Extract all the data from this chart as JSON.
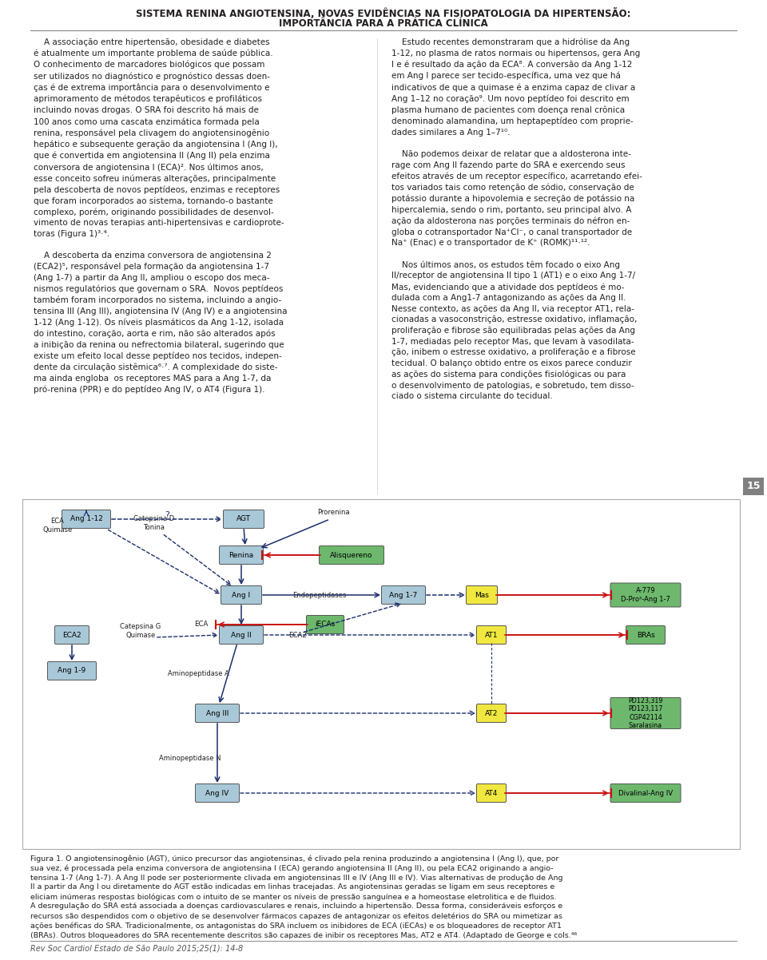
{
  "title_line1": "SISTEMA RENINA ANGIOTENSINA, NOVAS EVIDÊNCIAS NA FISIOPATOLOGIA DA HIPERTENSÃO:",
  "title_line2": "IMPORTÂNCIA PARA A PRÁTICA CLÍNICA",
  "background_color": "#ffffff",
  "text_color": "#231f20",
  "page_number": "15",
  "footer": "Rev Soc Cardiol Estado de São Paulo 2015;25(1): 14-8",
  "col1_text": "    A associação entre hipertensão, obesidade e diabetes\né atualmente um importante problema de saúde pública.\nO conhecimento de marcadores biológicos que possam\nser utilizados no diagnóstico e prognóstico dessas doen-\nças é de extrema importância para o desenvolvimento e\naprimoramento de métodos terapêuticos e profiláticos\nincluindo novas drogas. O SRA foi descrito há mais de\n100 anos como uma cascata enzimática formada pela\nrenina, responsável pela clivagem do angiotensinogênio\nhepático e subsequente geração da angiotensina I (Ang I),\nque é convertida em angiotensina II (Ang II) pela enzima\nconversora de angiotensina I (ECA)². Nos últimos anos,\nesse conceito sofreu inúmeras alterações, principalmente\npela descoberta de novos peptídeos, enzimas e receptores\nque foram incorporados ao sistema, tornando-o bastante\ncomplexo, porém, originando possibilidades de desenvol-\nvimento de novas terapias anti-hipertensivas e cardioprote-\ntoras (Figura 1)³·⁴.\n\n    A descoberta da enzima conversora de angiotensina 2\n(ECA2)⁵, responsável pela formação da angiotensina 1-7\n(Ang 1-7) a partir da Ang II, ampliou o escopo dos meca-\nnismos regulatórios que governam o SRA.  Novos peptídeos\ntambém foram incorporados no sistema, incluindo a angio-\ntensina III (Ang III), angiotensina IV (Ang IV) e a angiotensina\n1-12 (Ang 1-12). Os níveis plasmáticos da Ang 1-12, isolada\ndo intestino, coração, aorta e rim, não são alterados após\na inibição da renina ou nefrectomia bilateral, sugerindo que\nexiste um efeito local desse peptídeo nos tecidos, indepen-\ndente da circulação sistêmica⁶·⁷. A complexidade do siste-\nma ainda engloba  os receptores MAS para a Ang 1-7, da\npró-renina (PPR) e do peptídeo Ang IV, o AT4 (Figura 1).",
  "col2_text": "    Estudo recentes demonstraram que a hidrólise da Ang\n1-12, no plasma de ratos normais ou hipertensos, gera Ang\nI e é resultado da ação da ECA⁸. A conversão da Ang 1-12\nem Ang I parece ser tecido-específica, uma vez que há\nindicativos de que a quimase é a enzima capaz de clivar a\nAng 1–12 no coração⁹. Um novo peptídeo foi descrito em\nplasma humano de pacientes com doença renal crônica\ndenominado alamandina, um heptapeptídeo com proprie-\ndades similares a Ang 1–7¹⁰.\n\n    Não podemos deixar de relatar que a aldosterona inte-\nrage com Ang II fazendo parte do SRA e exercendo seus\nefeitos através de um receptor específico, acarretando efei-\ntos variados tais como retenção de sódio, conservação de\npotássio durante a hipovolemia e secreção de potássio na\nhipercalemia, sendo o rim, portanto, seu principal alvo. A\nação da aldosterona nas porções terminais do néfron en-\ngloba o cotransportador Na⁺Cl⁻, o canal transportador de\nNa⁺ (Enac) e o transportador de K⁺ (ROMK)¹¹·¹².\n\n    Nos últimos anos, os estudos têm focado o eixo Ang\nII/receptor de angiotensina II tipo 1 (AT1) e o eixo Ang 1-7/\nMas, evidenciando que a atividade dos peptídeos é mo-\ndulada com a Ang1-7 antagonizando as ações da Ang II.\nNesse contexto, as ações da Ang II, via receptor AT1, rela-\ncionadas a vasoconstrição, estresse oxidativo, inflamação,\nproliferação e fibrose são equilibradas pelas ações da Ang\n1-7, mediadas pelo receptor Mas, que levam à vasodilata-\nção, inibem o estresse oxidativo, a proliferação e a fibrose\ntecidual. O balanço obtido entre os eixos parece conduzir\nas ações do sistema para condições fisiológicas ou para\no desenvolvimento de patologias, e sobretudo, tem disso-\nciado o sistema circulante do tecidual.",
  "caption_text": "Figura 1. O angiotensinogênio (AGT), único precursor das angiotensinas, é clivado pela renina produzindo a angiotensina I (Ang I), que, por\nsua vez, é processada pela enzima conversora de angiotensina I (ECA) gerando angiotensina II (Ang II), ou pela ECA2 originando a angio-\ntensina 1-7 (Ang 1-7). A Ang II pode ser posteriormente clivada em angiotensinas III e IV (Ang III e IV). Vias alternativas de produção de Ang\nII a partir da Ang I ou diretamente do AGT estão indicadas em linhas tracejadas. As angiotensinas geradas se ligam em seus receptores e\neliciam inúmeras respostas biológicas com o intuito de se manter os níveis de pressão sanguínea e a homeostase eletrolitica e de fluidos.\nA desregulação do SRA está associada a doenças cardiovasculares e renais, incluindo a hipertensão. Dessa forma, consideráveis esforços e\nrecursos são despendidos com o objetivo de se desenvolver fármacos capazes de antagonizar os efeitos deletérios do SRA ou mimetizar as\nações benéficas do SRA. Tradicionalmente, os antagonistas do SRA incluem os inibidores de ECA (iECAs) e os bloqueadores de receptor AT1\n(BRAs). Outros bloqueadores do SRA recentemente descritos são capazes de inibir os receptores Mas, AT2 e AT4. (Adaptado de George e cols.⁴⁶",
  "blue_box": "#a8c8d8",
  "green_box": "#6db86d",
  "yellow_box": "#f0e840",
  "dark_arrow": "#1a2e6b",
  "red_color": "#cc1111"
}
